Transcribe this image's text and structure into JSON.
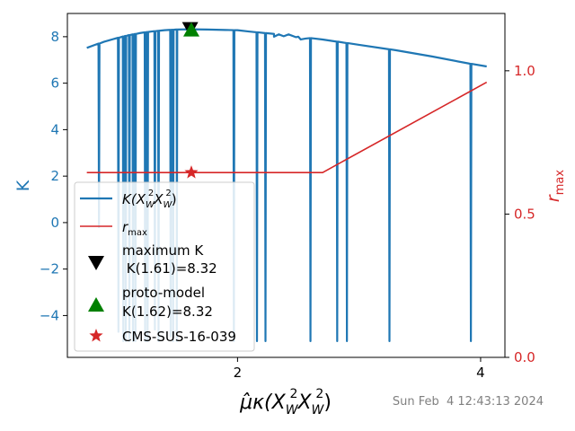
{
  "chart_data": {
    "type": "line",
    "xlabel_base": "μ̂κ(X",
    "xlabel_sub1": "W",
    "xlabel_mid": "X",
    "xlabel_sub2": "W",
    "xlabel_end": ")",
    "xlabel_sup": "2",
    "ylabel_left": "K",
    "ylabel_right_base": "r",
    "ylabel_right_sub": "max",
    "xlim": [
      0.6,
      4.2
    ],
    "ylim_left": [
      -5.8,
      9.0
    ],
    "ylim_right": [
      0.0,
      1.2
    ],
    "x_ticks": [
      2,
      4
    ],
    "y_ticks_left": [
      -4,
      -2,
      0,
      2,
      4,
      6,
      8
    ],
    "y_ticks_right": [
      0.0,
      0.5,
      1.0
    ],
    "x_tick_labels": [
      "2",
      "4"
    ],
    "y_tick_labels_left": [
      "−4",
      "−2",
      "0",
      "2",
      "4",
      "6",
      "8"
    ],
    "y_tick_labels_right": [
      "0.0",
      "0.5",
      "1.0"
    ],
    "series": [
      {
        "key": "K",
        "axis": "left",
        "color": "#1f77b4",
        "envelope": [
          [
            0.76,
            7.52
          ],
          [
            0.9,
            7.78
          ],
          [
            1.0,
            7.93
          ],
          [
            1.1,
            8.06
          ],
          [
            1.2,
            8.16
          ],
          [
            1.3,
            8.23
          ],
          [
            1.4,
            8.28
          ],
          [
            1.5,
            8.31
          ],
          [
            1.61,
            8.32
          ],
          [
            1.75,
            8.31
          ],
          [
            1.9,
            8.29
          ],
          [
            2.0,
            8.28
          ],
          [
            2.1,
            8.22
          ],
          [
            2.3,
            8.12
          ],
          [
            2.5,
            8.0
          ],
          [
            2.7,
            7.88
          ],
          [
            3.0,
            7.65
          ],
          [
            3.3,
            7.42
          ],
          [
            3.6,
            7.15
          ],
          [
            3.9,
            6.85
          ],
          [
            4.05,
            6.72
          ]
        ],
        "dips": [
          [
            0.86,
            -0.2
          ],
          [
            1.02,
            -4.7
          ],
          [
            1.06,
            -5.1
          ],
          [
            1.08,
            -5.1
          ],
          [
            1.11,
            -5.1
          ],
          [
            1.14,
            -5.1
          ],
          [
            1.16,
            -5.1
          ],
          [
            1.24,
            -5.1
          ],
          [
            1.26,
            -5.1
          ],
          [
            1.32,
            -4.6
          ],
          [
            1.35,
            -5.1
          ],
          [
            1.45,
            -4.9
          ],
          [
            1.47,
            -5.1
          ],
          [
            1.5,
            -5.1
          ],
          [
            1.97,
            -5.1
          ],
          [
            2.16,
            -5.1
          ],
          [
            2.23,
            -5.1
          ],
          [
            2.6,
            -5.1
          ],
          [
            2.82,
            -5.1
          ],
          [
            2.9,
            -5.1
          ],
          [
            3.25,
            -5.1
          ],
          [
            3.92,
            -5.1
          ]
        ],
        "wiggles": [
          [
            2.3,
            8.0
          ],
          [
            2.34,
            8.1
          ],
          [
            2.38,
            8.02
          ],
          [
            2.42,
            8.1
          ],
          [
            2.48,
            7.98
          ],
          [
            2.52,
            7.88
          ],
          [
            2.56,
            7.92
          ]
        ]
      },
      {
        "key": "r_max",
        "axis": "right",
        "color": "#d62728",
        "points": [
          [
            0.76,
            0.645
          ],
          [
            2.7,
            0.645
          ],
          [
            4.05,
            0.96
          ]
        ]
      }
    ],
    "markers": [
      {
        "key": "maximum",
        "x": 1.61,
        "y": 8.32,
        "axis": "left",
        "shape": "triangle-down",
        "color": "#000000"
      },
      {
        "key": "proto",
        "x": 1.62,
        "y": 8.32,
        "axis": "left",
        "shape": "triangle-up",
        "color": "#008000"
      },
      {
        "key": "cms",
        "x": 1.62,
        "y": 0.645,
        "axis": "right",
        "shape": "star",
        "color": "#d62728"
      }
    ],
    "legend": {
      "placement": "lower-left",
      "entries": [
        {
          "key": "K",
          "base": "K(X",
          "sub1": "W",
          "mid": "X",
          "sub2": "W",
          "end": ")",
          "sup": "2"
        },
        {
          "key": "r_max",
          "base": "r",
          "sub": "max"
        },
        {
          "key": "maximum",
          "line1": "maximum K",
          "line2": " K(1.61)=8.32"
        },
        {
          "key": "proto",
          "line1": "proto-model",
          "line2": "K(1.62)=8.32"
        },
        {
          "key": "cms",
          "line1": "CMS-SUS-16-039"
        }
      ]
    }
  },
  "timestamp": "Sun Feb  4 12:43:13 2024"
}
